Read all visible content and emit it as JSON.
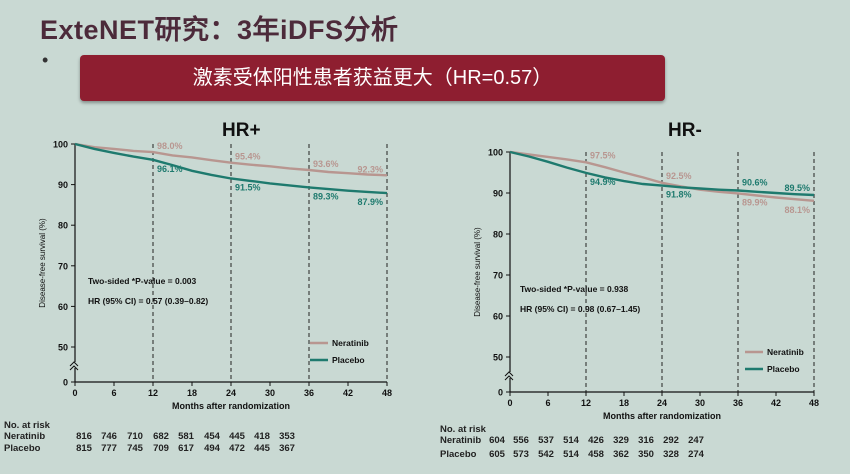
{
  "slide": {
    "title": "ExteNET研究：3年iDFS分析",
    "bullet": "•",
    "banner": "激素受体阳性患者获益更大（HR=0.57）"
  },
  "colors": {
    "neratinib": "#b89690",
    "placebo": "#1e7a6e",
    "banner": "#8e1e30"
  },
  "chart_data": [
    {
      "type": "line",
      "title": "HR+",
      "xlabel": "Months after randomization",
      "ylabel": "Disease-free survival (%)",
      "xlim": [
        0,
        48
      ],
      "ylim": [
        0,
        100
      ],
      "xticks": [
        0,
        6,
        12,
        18,
        24,
        30,
        36,
        42,
        48
      ],
      "yticks": [
        0,
        50,
        60,
        70,
        80,
        90,
        100
      ],
      "axis_break": true,
      "legend": "bottom-right",
      "reference_lines_x": [
        12,
        24,
        36,
        48
      ],
      "stats": [
        "Two-sided *P-value = 0.003",
        "HR (95% CI) = 0.57 (0.39–0.82)"
      ],
      "series": [
        {
          "name": "Neratinib",
          "x": [
            0,
            3,
            6,
            9,
            12,
            15,
            18,
            21,
            24,
            27,
            30,
            33,
            36,
            39,
            42,
            45,
            48
          ],
          "values": [
            100,
            99.2,
            98.8,
            98.3,
            98.0,
            97.2,
            96.7,
            96.0,
            95.4,
            94.9,
            94.5,
            94.0,
            93.6,
            93.1,
            92.8,
            92.5,
            92.3
          ]
        },
        {
          "name": "Placebo",
          "x": [
            0,
            3,
            6,
            9,
            12,
            15,
            18,
            21,
            24,
            27,
            30,
            33,
            36,
            39,
            42,
            45,
            48
          ],
          "values": [
            100,
            98.8,
            97.8,
            96.9,
            96.1,
            94.8,
            93.4,
            92.4,
            91.5,
            90.9,
            90.3,
            89.8,
            89.3,
            88.9,
            88.5,
            88.2,
            87.9
          ]
        }
      ],
      "annotations": [
        {
          "x": 12,
          "y": 98.0,
          "text": "98.0%",
          "series": "Neratinib"
        },
        {
          "x": 24,
          "y": 95.4,
          "text": "95.4%",
          "series": "Neratinib"
        },
        {
          "x": 36,
          "y": 93.6,
          "text": "93.6%",
          "series": "Neratinib"
        },
        {
          "x": 48,
          "y": 92.3,
          "text": "92.3%",
          "series": "Neratinib"
        },
        {
          "x": 12,
          "y": 96.1,
          "text": "96.1%",
          "series": "Placebo"
        },
        {
          "x": 24,
          "y": 91.5,
          "text": "91.5%",
          "series": "Placebo"
        },
        {
          "x": 36,
          "y": 89.3,
          "text": "89.3%",
          "series": "Placebo"
        },
        {
          "x": 48,
          "y": 87.9,
          "text": "87.9%",
          "series": "Placebo"
        }
      ],
      "risk_table": {
        "title": "No. at risk",
        "months": [
          0,
          6,
          12,
          18,
          24,
          30,
          36,
          42,
          48
        ],
        "rows": [
          {
            "name": "Neratinib",
            "values": [
              816,
              746,
              710,
              682,
              581,
              454,
              445,
              418,
              353
            ]
          },
          {
            "name": "Placebo",
            "values": [
              815,
              777,
              745,
              709,
              617,
              494,
              472,
              445,
              367
            ]
          }
        ]
      }
    },
    {
      "type": "line",
      "title": "HR-",
      "xlabel": "Months after randomization",
      "ylabel": "Disease-free survival (%)",
      "xlim": [
        0,
        48
      ],
      "ylim": [
        0,
        100
      ],
      "xticks": [
        0,
        6,
        12,
        18,
        24,
        30,
        36,
        42,
        48
      ],
      "yticks": [
        0,
        50,
        60,
        70,
        80,
        90,
        100
      ],
      "axis_break": true,
      "legend": "bottom-right",
      "reference_lines_x": [
        12,
        24,
        36,
        48
      ],
      "stats": [
        "Two-sided *P-value = 0.938",
        "HR (95% CI) = 0.98 (0.67–1.45)"
      ],
      "series": [
        {
          "name": "Neratinib",
          "x": [
            0,
            3,
            6,
            9,
            12,
            15,
            18,
            21,
            24,
            27,
            30,
            33,
            36,
            39,
            42,
            45,
            48
          ],
          "values": [
            100,
            99.4,
            98.8,
            98.2,
            97.5,
            96.3,
            95.0,
            93.8,
            92.5,
            91.6,
            90.8,
            90.3,
            89.9,
            89.4,
            88.9,
            88.5,
            88.1
          ]
        },
        {
          "name": "Placebo",
          "x": [
            0,
            3,
            6,
            9,
            12,
            15,
            18,
            21,
            24,
            27,
            30,
            33,
            36,
            39,
            42,
            45,
            48
          ],
          "values": [
            100,
            98.9,
            97.6,
            96.2,
            94.9,
            93.8,
            92.9,
            92.2,
            91.8,
            91.4,
            91.1,
            90.8,
            90.6,
            90.3,
            90.0,
            89.7,
            89.5
          ]
        }
      ],
      "annotations": [
        {
          "x": 12,
          "y": 97.5,
          "text": "97.5%",
          "series": "Neratinib"
        },
        {
          "x": 24,
          "y": 92.5,
          "text": "92.5%",
          "series": "Neratinib"
        },
        {
          "x": 36,
          "y": 89.9,
          "text": "89.9%",
          "series": "Neratinib"
        },
        {
          "x": 48,
          "y": 88.1,
          "text": "88.1%",
          "series": "Neratinib"
        },
        {
          "x": 12,
          "y": 94.9,
          "text": "94.9%",
          "series": "Placebo"
        },
        {
          "x": 24,
          "y": 91.8,
          "text": "91.8%",
          "series": "Placebo"
        },
        {
          "x": 36,
          "y": 90.6,
          "text": "90.6%",
          "series": "Placebo"
        },
        {
          "x": 48,
          "y": 89.5,
          "text": "89.5%",
          "series": "Placebo"
        }
      ],
      "risk_table": {
        "title": "No. at risk",
        "months": [
          0,
          6,
          12,
          18,
          24,
          30,
          36,
          42,
          48
        ],
        "rows": [
          {
            "name": "Neratinib",
            "values": [
              604,
              556,
              537,
              514,
              426,
              329,
              316,
              292,
              247
            ]
          },
          {
            "name": "Placebo",
            "values": [
              605,
              573,
              542,
              514,
              458,
              362,
              350,
              328,
              274
            ]
          }
        ]
      }
    }
  ]
}
